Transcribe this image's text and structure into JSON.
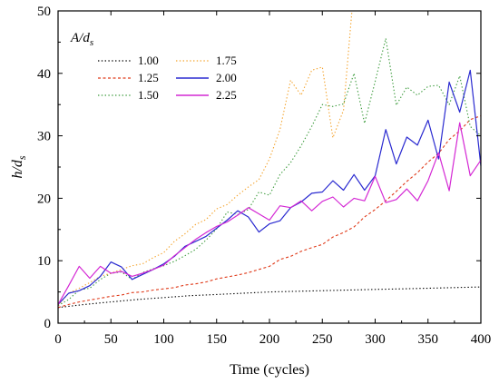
{
  "chart_data": {
    "type": "line",
    "xlabel": "Time (cycles)",
    "ylabel": "h/d",
    "ylabel_sub": "s",
    "xlim": [
      0,
      400
    ],
    "ylim": [
      0,
      50
    ],
    "xticks": [
      0,
      50,
      100,
      150,
      200,
      250,
      300,
      350,
      400
    ],
    "yticks": [
      0,
      10,
      20,
      30,
      40,
      50
    ],
    "legend": {
      "title": "A/d",
      "title_sub": "s",
      "placement": "top-left"
    },
    "series": [
      {
        "name": "1.00",
        "color": "#000000",
        "dash": "dotted",
        "x": [
          0,
          25,
          50,
          75,
          100,
          125,
          150,
          175,
          200,
          225,
          250,
          275,
          300,
          325,
          350,
          375,
          400
        ],
        "y": [
          2.5,
          3.0,
          3.4,
          3.8,
          4.1,
          4.4,
          4.6,
          4.8,
          5.0,
          5.1,
          5.2,
          5.3,
          5.4,
          5.5,
          5.6,
          5.7,
          5.8
        ]
      },
      {
        "name": "1.25",
        "color": "#e03c1c",
        "dash": "dashed",
        "x": [
          0,
          10,
          20,
          30,
          40,
          50,
          60,
          70,
          80,
          90,
          100,
          110,
          120,
          130,
          140,
          150,
          160,
          170,
          180,
          190,
          200,
          210,
          220,
          230,
          240,
          250,
          260,
          270,
          280,
          290,
          300,
          310,
          320,
          330,
          340,
          350,
          360,
          370,
          380,
          390,
          400
        ],
        "y": [
          2.5,
          3.0,
          3.4,
          3.7,
          4.0,
          4.3,
          4.5,
          4.9,
          5.0,
          5.3,
          5.5,
          5.7,
          6.1,
          6.3,
          6.6,
          7.1,
          7.4,
          7.7,
          8.1,
          8.6,
          9.1,
          10.2,
          10.7,
          11.5,
          12.1,
          12.6,
          13.8,
          14.5,
          15.4,
          17.0,
          18.2,
          19.6,
          21.1,
          22.7,
          24.1,
          25.8,
          27.2,
          29.4,
          30.8,
          32.6,
          33.2
        ]
      },
      {
        "name": "1.50",
        "color": "#3a9a3a",
        "dash": "dotted",
        "x": [
          0,
          10,
          20,
          30,
          40,
          50,
          60,
          70,
          80,
          90,
          100,
          110,
          120,
          130,
          140,
          150,
          160,
          170,
          180,
          190,
          200,
          210,
          220,
          230,
          240,
          250,
          260,
          270,
          280,
          290,
          300,
          310,
          320,
          330,
          340,
          350,
          360,
          370,
          380,
          390,
          400
        ],
        "y": [
          2.8,
          3.8,
          5.3,
          5.6,
          7.0,
          8.0,
          8.2,
          7.0,
          8.1,
          8.7,
          9.2,
          9.9,
          10.8,
          11.8,
          13.3,
          15.1,
          17.8,
          17.4,
          18.2,
          21.0,
          20.5,
          23.8,
          25.7,
          28.4,
          31.5,
          35.0,
          34.7,
          35.1,
          40.0,
          32.0,
          38.7,
          45.6,
          34.9,
          37.8,
          36.5,
          37.9,
          38.1,
          35.0,
          39.6,
          31.5,
          30.0
        ]
      },
      {
        "name": "1.75",
        "color": "#f4a32c",
        "dash": "dotted",
        "x": [
          0,
          10,
          20,
          30,
          40,
          50,
          60,
          70,
          80,
          90,
          100,
          110,
          120,
          130,
          140,
          150,
          160,
          170,
          180,
          190,
          200,
          210,
          220,
          230,
          240,
          250,
          260,
          270,
          278
        ],
        "y": [
          2.8,
          4.8,
          5.6,
          6.5,
          7.5,
          8.0,
          8.6,
          9.2,
          9.5,
          10.5,
          11.3,
          13.1,
          14.3,
          15.8,
          16.6,
          18.3,
          19.0,
          20.5,
          21.8,
          23.0,
          26.3,
          31.0,
          38.9,
          36.5,
          40.5,
          41.0,
          29.7,
          34.1,
          50.0
        ]
      },
      {
        "name": "2.00",
        "color": "#2a2ad0",
        "dash": "solid",
        "x": [
          0,
          10,
          20,
          30,
          40,
          50,
          60,
          70,
          80,
          90,
          100,
          110,
          120,
          130,
          140,
          150,
          160,
          170,
          180,
          190,
          200,
          210,
          220,
          230,
          240,
          250,
          260,
          270,
          280,
          290,
          300,
          310,
          320,
          330,
          340,
          350,
          360,
          370,
          380,
          390,
          400
        ],
        "y": [
          3.0,
          4.8,
          5.2,
          6.0,
          7.5,
          9.8,
          9.0,
          7.0,
          7.8,
          8.6,
          9.5,
          10.7,
          12.3,
          13.1,
          13.9,
          15.2,
          16.5,
          18.0,
          17.0,
          14.6,
          15.9,
          16.4,
          18.5,
          19.4,
          20.8,
          21.0,
          22.8,
          21.3,
          23.8,
          21.3,
          23.6,
          31.0,
          25.5,
          29.8,
          28.5,
          32.5,
          26.3,
          38.6,
          33.8,
          40.5,
          25.2
        ]
      },
      {
        "name": "2.25",
        "color": "#d428d4",
        "dash": "solid",
        "x": [
          0,
          10,
          20,
          30,
          40,
          50,
          60,
          70,
          80,
          90,
          100,
          110,
          120,
          130,
          140,
          150,
          160,
          170,
          180,
          190,
          200,
          210,
          220,
          230,
          240,
          250,
          260,
          270,
          280,
          290,
          300,
          310,
          320,
          330,
          340,
          350,
          360,
          370,
          380,
          390,
          400
        ],
        "y": [
          3.0,
          6.0,
          9.1,
          7.2,
          9.1,
          8.0,
          8.3,
          7.5,
          8.0,
          8.6,
          9.3,
          10.8,
          12.1,
          13.4,
          14.5,
          15.5,
          16.2,
          17.3,
          18.5,
          17.5,
          16.5,
          18.8,
          18.5,
          19.6,
          18.0,
          19.5,
          20.2,
          18.6,
          20.0,
          19.6,
          23.5,
          19.3,
          19.8,
          21.5,
          19.6,
          22.8,
          27.3,
          21.2,
          32.1,
          23.6,
          26.1
        ]
      }
    ]
  }
}
